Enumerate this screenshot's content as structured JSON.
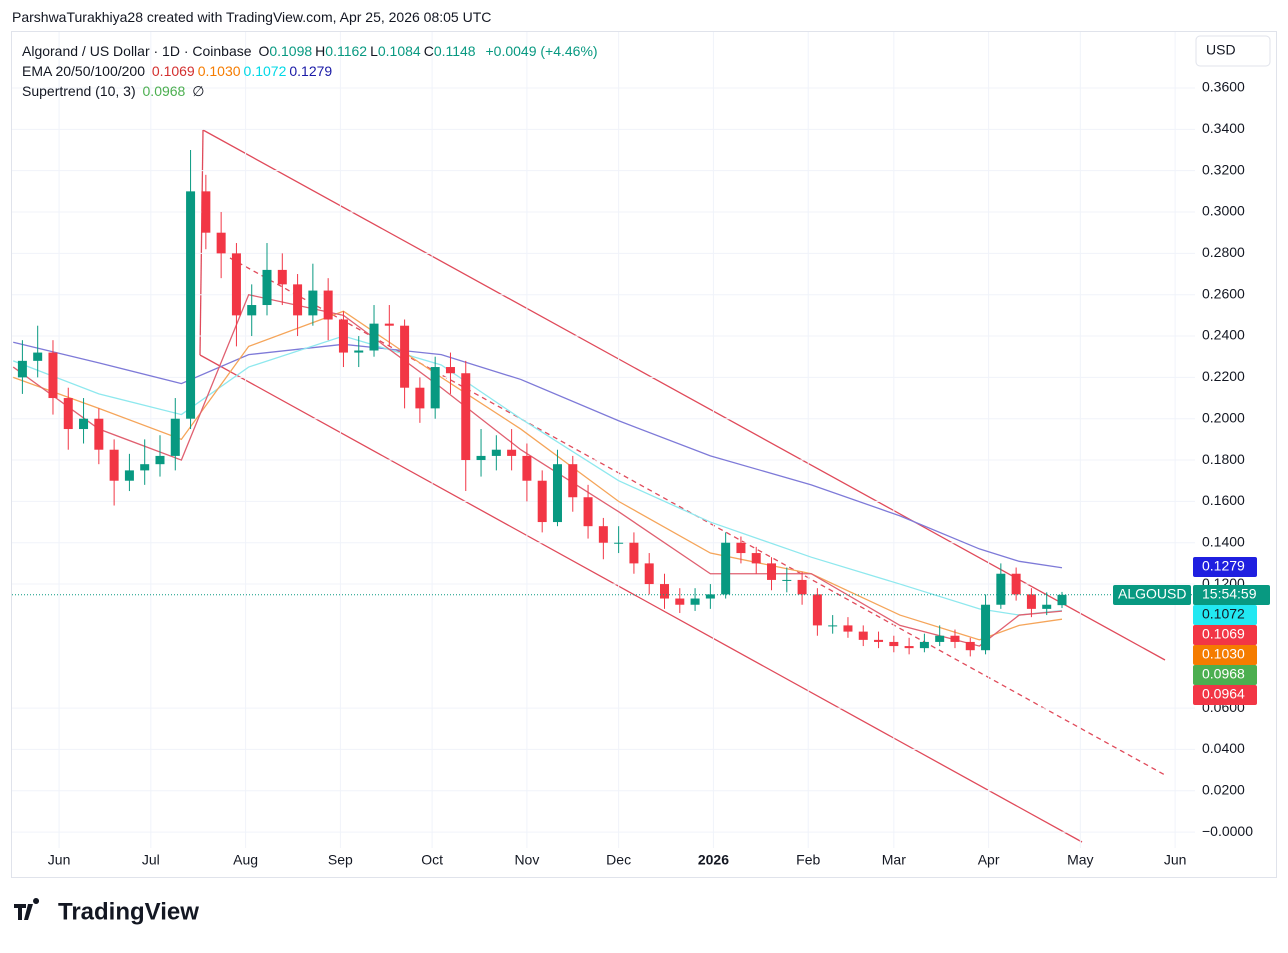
{
  "header": {
    "credit": "ParshwaTurakhiya28 created with TradingView.com, Apr 25, 2026 08:05 UTC",
    "logo": "TradingView"
  },
  "chart_data": {
    "type": "candlestick",
    "title": "Algorand / US Dollar · 1D · Coinbase",
    "ohlc_legend": [
      [
        "O",
        "0.1098"
      ],
      [
        "H",
        "0.1162"
      ],
      [
        "L",
        "0.1084"
      ],
      [
        "C",
        "0.1148"
      ]
    ],
    "change": "+0.0049 (+4.46%)",
    "ema_label": "EMA 20/50/100/200",
    "ema_values": [
      "0.1069",
      "0.1030",
      "0.1072",
      "0.1279"
    ],
    "supertrend_label": "Supertrend (10, 3)",
    "supertrend_value": "0.0968",
    "supertrend_symbol": "∅",
    "currency": "USD",
    "up_color": "#089981",
    "down_color": "#f23645",
    "x": [
      19,
      24,
      29,
      34,
      39,
      44,
      49,
      54,
      59,
      64,
      69,
      74,
      79,
      84,
      89,
      94,
      99,
      104,
      109,
      114,
      119,
      124,
      129,
      134,
      139,
      144,
      149,
      154,
      159,
      164,
      169,
      174,
      179,
      184,
      189,
      194,
      199,
      204,
      209,
      214,
      219,
      224,
      229,
      234,
      239,
      244,
      249,
      254,
      259,
      264,
      269,
      274,
      279,
      284,
      289,
      294,
      299,
      304,
      309,
      314,
      319,
      324,
      329,
      334,
      339,
      344,
      349,
      354,
      359
    ],
    "open": [
      0.22,
      0.228,
      0.232,
      0.21,
      0.195,
      0.2,
      0.185,
      0.17,
      0.175,
      0.178,
      0.182,
      0.2,
      0.31,
      0.29,
      0.28,
      0.25,
      0.255,
      0.272,
      0.265,
      0.25,
      0.262,
      0.248,
      0.232,
      0.233,
      0.246,
      0.245,
      0.215,
      0.205,
      0.225,
      0.222,
      0.18,
      0.182,
      0.185,
      0.182,
      0.17,
      0.15,
      0.178,
      0.162,
      0.148,
      0.14,
      0.14,
      0.13,
      0.12,
      0.113,
      0.11,
      0.113,
      0.115,
      0.14,
      0.135,
      0.13,
      0.122,
      0.122,
      0.115,
      0.1,
      0.1,
      0.097,
      0.093,
      0.092,
      0.09,
      0.089,
      0.092,
      0.095,
      0.092,
      0.088,
      0.11,
      0.125,
      0.115,
      0.108,
      0.1098
    ],
    "high": [
      0.238,
      0.245,
      0.238,
      0.215,
      0.21,
      0.205,
      0.19,
      0.183,
      0.19,
      0.192,
      0.21,
      0.33,
      0.318,
      0.3,
      0.285,
      0.265,
      0.285,
      0.28,
      0.27,
      0.275,
      0.268,
      0.252,
      0.24,
      0.255,
      0.255,
      0.248,
      0.22,
      0.23,
      0.232,
      0.228,
      0.195,
      0.192,
      0.195,
      0.188,
      0.175,
      0.185,
      0.182,
      0.168,
      0.152,
      0.148,
      0.145,
      0.135,
      0.125,
      0.118,
      0.118,
      0.12,
      0.145,
      0.143,
      0.138,
      0.133,
      0.128,
      0.126,
      0.118,
      0.105,
      0.104,
      0.1,
      0.097,
      0.095,
      0.094,
      0.096,
      0.1,
      0.098,
      0.094,
      0.115,
      0.13,
      0.128,
      0.118,
      0.116,
      0.1162
    ],
    "low": [
      0.212,
      0.22,
      0.202,
      0.185,
      0.188,
      0.178,
      0.158,
      0.165,
      0.168,
      0.172,
      0.175,
      0.195,
      0.282,
      0.268,
      0.235,
      0.24,
      0.25,
      0.255,
      0.24,
      0.245,
      0.238,
      0.225,
      0.225,
      0.23,
      0.235,
      0.205,
      0.198,
      0.2,
      0.212,
      0.165,
      0.172,
      0.175,
      0.175,
      0.16,
      0.145,
      0.148,
      0.155,
      0.142,
      0.132,
      0.135,
      0.125,
      0.115,
      0.108,
      0.106,
      0.107,
      0.108,
      0.113,
      0.13,
      0.125,
      0.117,
      0.116,
      0.11,
      0.095,
      0.096,
      0.094,
      0.09,
      0.089,
      0.087,
      0.086,
      0.087,
      0.09,
      0.089,
      0.085,
      0.086,
      0.108,
      0.112,
      0.104,
      0.105,
      0.1084
    ],
    "close": [
      0.228,
      0.232,
      0.21,
      0.195,
      0.2,
      0.185,
      0.17,
      0.175,
      0.178,
      0.182,
      0.2,
      0.31,
      0.29,
      0.28,
      0.25,
      0.255,
      0.272,
      0.265,
      0.25,
      0.262,
      0.248,
      0.232,
      0.233,
      0.246,
      0.245,
      0.215,
      0.205,
      0.225,
      0.222,
      0.18,
      0.182,
      0.185,
      0.182,
      0.17,
      0.15,
      0.178,
      0.162,
      0.148,
      0.14,
      0.14,
      0.13,
      0.12,
      0.113,
      0.11,
      0.113,
      0.115,
      0.14,
      0.135,
      0.13,
      0.122,
      0.122,
      0.115,
      0.1,
      0.1,
      0.097,
      0.093,
      0.092,
      0.09,
      0.089,
      0.092,
      0.095,
      0.092,
      0.088,
      0.11,
      0.125,
      0.115,
      0.108,
      0.11,
      0.1148
    ],
    "overlay_x": [
      16,
      44,
      71,
      93,
      124,
      156,
      182,
      214,
      244,
      277,
      306,
      332,
      345,
      359
    ],
    "overlays": [
      {
        "color": "#7e7ad8",
        "values": [
          0.237,
          0.227,
          0.217,
          0.231,
          0.236,
          0.231,
          0.219,
          0.199,
          0.182,
          0.168,
          0.153,
          0.137,
          0.131,
          0.1279
        ]
      },
      {
        "color": "#8ee8ee",
        "values": [
          0.228,
          0.212,
          0.202,
          0.225,
          0.24,
          0.226,
          0.2,
          0.17,
          0.15,
          0.133,
          0.12,
          0.108,
          0.105,
          0.1072
        ]
      },
      {
        "color": "#f5a55a",
        "values": [
          0.22,
          0.205,
          0.19,
          0.235,
          0.252,
          0.22,
          0.195,
          0.16,
          0.135,
          0.125,
          0.105,
          0.093,
          0.1,
          0.103
        ]
      },
      {
        "color": "#e06070",
        "values": [
          0.225,
          0.195,
          0.18,
          0.26,
          0.25,
          0.215,
          0.185,
          0.155,
          0.125,
          0.125,
          0.1,
          0.09,
          0.105,
          0.1069
        ]
      }
    ],
    "price_badges": [
      {
        "text": "0.1279",
        "color": "#1f1fe0"
      },
      {
        "text": "ALGOUSD",
        "extra": "15:54:59",
        "color": "#089981"
      },
      {
        "text": "0.1072",
        "color": "#22e8f2"
      },
      {
        "text": "0.1069",
        "color": "#f23645"
      },
      {
        "text": "0.1030",
        "color": "#f57c00"
      },
      {
        "text": "0.0968",
        "color": "#4caf50"
      },
      {
        "text": "0.0964",
        "color": "#f23645"
      }
    ],
    "xlim": [
      15.6,
      402.5
    ],
    "ylim": [
      -0.0077,
      0.3871
    ],
    "xticks": [
      {
        "value": 31,
        "label": "Jun"
      },
      {
        "value": 61,
        "label": "Jul"
      },
      {
        "value": 92,
        "label": "Aug"
      },
      {
        "value": 123,
        "label": "Sep"
      },
      {
        "value": 153,
        "label": "Oct"
      },
      {
        "value": 184,
        "label": "Nov"
      },
      {
        "value": 214,
        "label": "Dec"
      },
      {
        "value": 245,
        "label": "2026"
      },
      {
        "value": 276,
        "label": "Feb"
      },
      {
        "value": 304,
        "label": "Mar"
      },
      {
        "value": 335,
        "label": "Apr"
      },
      {
        "value": 365,
        "label": "May"
      },
      {
        "value": 396,
        "label": "Jun"
      }
    ],
    "yticks": [
      {
        "value": 0.36,
        "label": "0.3600"
      },
      {
        "value": 0.34,
        "label": "0.3400"
      },
      {
        "value": 0.32,
        "label": "0.3200"
      },
      {
        "value": 0.3,
        "label": "0.3000"
      },
      {
        "value": 0.28,
        "label": "0.2800"
      },
      {
        "value": 0.26,
        "label": "0.2600"
      },
      {
        "value": 0.24,
        "label": "0.2400"
      },
      {
        "value": 0.22,
        "label": "0.2200"
      },
      {
        "value": 0.2,
        "label": "0.2000"
      },
      {
        "value": 0.18,
        "label": "0.1800"
      },
      {
        "value": 0.16,
        "label": "0.1600"
      },
      {
        "value": 0.14,
        "label": "0.1400"
      },
      {
        "value": 0.12,
        "label": "0.1200"
      },
      {
        "value": 0.06,
        "label": "0.0600"
      },
      {
        "value": 0.04,
        "label": "0.0400"
      },
      {
        "value": 0.02,
        "label": "0.0200"
      },
      {
        "value": 0,
        "label": "−0.0000"
      }
    ],
    "grid": true
  }
}
